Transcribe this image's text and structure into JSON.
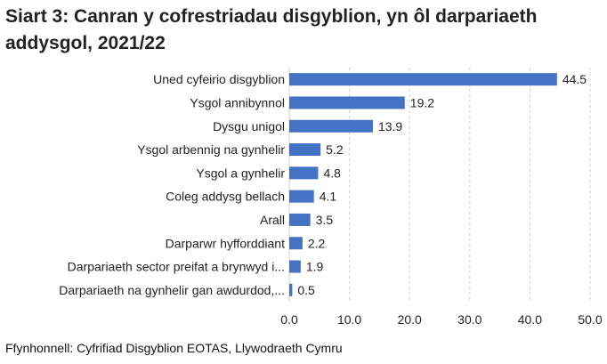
{
  "chart_data": {
    "type": "bar",
    "orientation": "horizontal",
    "title": "Siart 3: Canran y cofrestriadau disgyblion, yn ôl darpariaeth addysgol, 2021/22",
    "categories": [
      "Uned cyfeirio disgyblion",
      "Ysgol annibynnol",
      "Dysgu unigol",
      "Ysgol arbennig na gynhelir",
      "Ysgol a gynhelir",
      "Coleg addysg bellach",
      "Arall",
      "Darparwr hyfforddiant",
      "Darpariaeth sector preifat a brynwyd i...",
      "Darpariaeth na gynhelir gan awdurdod,..."
    ],
    "values": [
      44.5,
      19.2,
      13.9,
      5.2,
      4.8,
      4.1,
      3.5,
      2.2,
      1.9,
      0.5
    ],
    "value_labels": [
      "44.5",
      "19.2",
      "13.9",
      "5.2",
      "4.8",
      "4.1",
      "3.5",
      "2.2",
      "1.9",
      "0.5"
    ],
    "xlim": [
      0,
      50
    ],
    "xticks": [
      "0.0",
      "10.0",
      "20.0",
      "30.0",
      "40.0",
      "50.0"
    ],
    "xtick_values": [
      0,
      10,
      20,
      30,
      40,
      50
    ],
    "grid": true,
    "legend": "none",
    "bar_color": "#4472C4",
    "source": "Ffynhonnell: Cyfrifiad Disgyblion EOTAS, Llywodraeth Cymru"
  }
}
